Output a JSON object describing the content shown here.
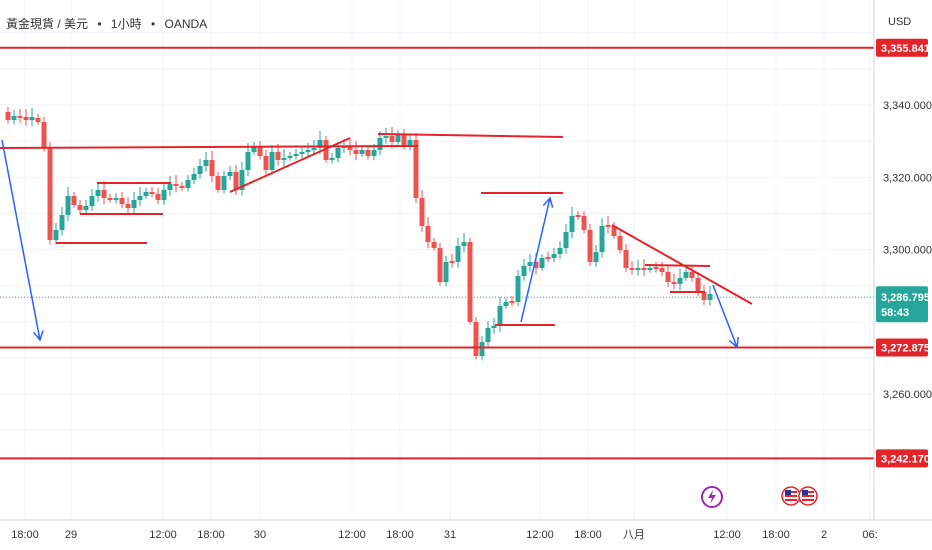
{
  "header": {
    "symbol": "黃金現貨 / 美元",
    "interval": "1小時",
    "source": "OANDA",
    "separator": "•"
  },
  "axis": {
    "currency": "USD"
  },
  "chart_data": {
    "type": "candlestick",
    "y_ticks": [
      "3,340.000",
      "3,320.000",
      "3,300.000",
      "3,260.000"
    ],
    "x_ticks": [
      "18:00",
      "29",
      "12:00",
      "18:00",
      "30",
      "12:00",
      "18:00",
      "31",
      "12:00",
      "18:00",
      "八月",
      "12:00",
      "18:00",
      "2",
      "06:"
    ],
    "ylim": [
      3232,
      3370
    ],
    "price_labels": [
      {
        "name": "level-top",
        "value": 3355.841,
        "text": "3,355.841"
      },
      {
        "name": "level-mid",
        "value": 3272.875,
        "text": "3,272.875"
      },
      {
        "name": "level-low",
        "value": 3242.17,
        "text": "3,242.170"
      }
    ],
    "current_price": {
      "value": 3286.795,
      "text": "3,286.795",
      "countdown": "58:43"
    },
    "colors": {
      "up": "#26a69a",
      "down": "#ef5350",
      "line": "#e3242b",
      "arrow": "#2962ff",
      "current": "#26a69a"
    }
  }
}
